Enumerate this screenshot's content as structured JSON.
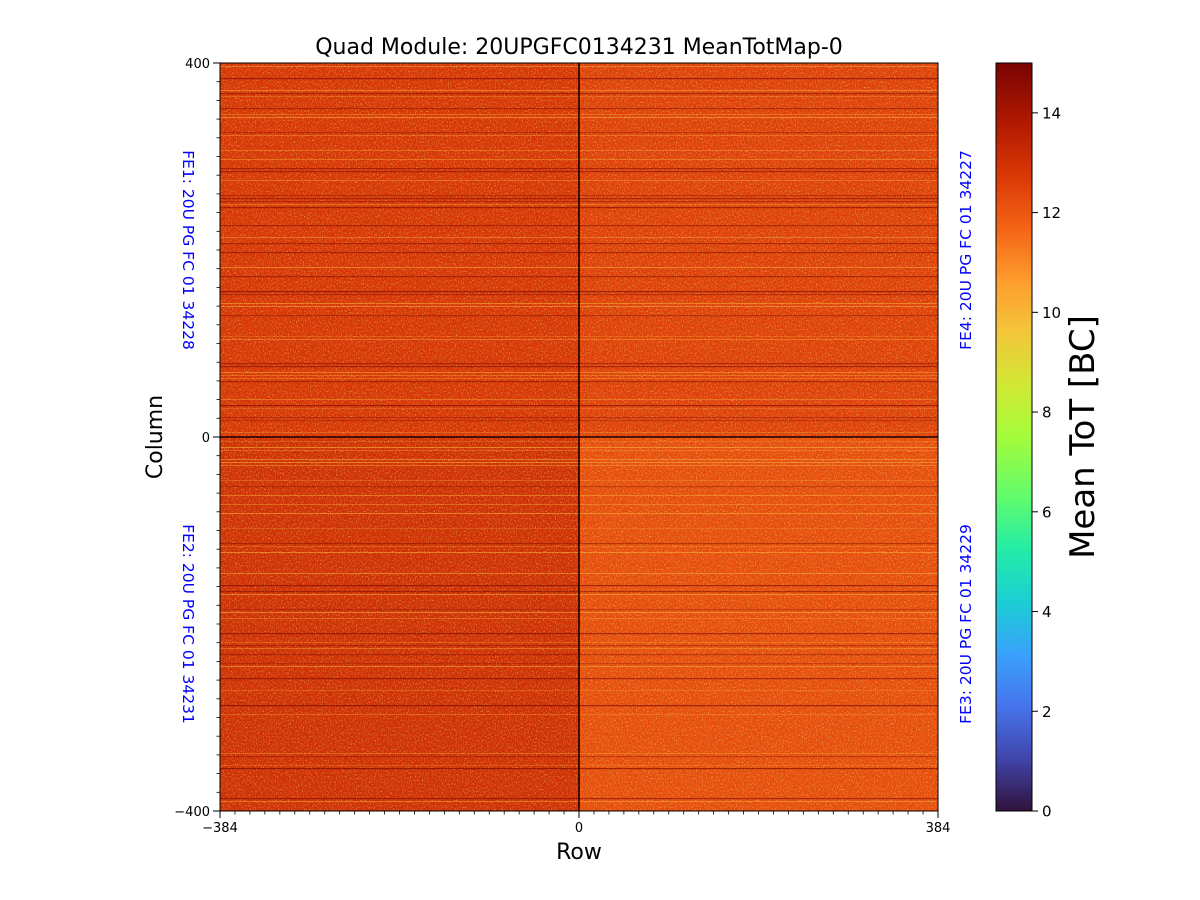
{
  "chart_data": {
    "type": "heatmap",
    "title": "Quad Module: 20UPGFC0134231 MeanTotMap-0",
    "xlabel": "Row",
    "ylabel": "Column",
    "xlim": [
      -384,
      384
    ],
    "ylim": [
      -400,
      400
    ],
    "x_ticks": [
      -384,
      0,
      384
    ],
    "y_ticks": [
      -400,
      0,
      400
    ],
    "x_tick_labels": [
      "−384",
      "0",
      "384"
    ],
    "y_tick_labels": [
      "−400",
      "0",
      "400"
    ],
    "colorbar": {
      "label": "Mean ToT [BC]",
      "range": [
        0,
        15
      ],
      "ticks": [
        0,
        2,
        4,
        6,
        8,
        10,
        12,
        14
      ],
      "colormap": "turbo"
    },
    "quadrant_labels": [
      {
        "text": "FE1: 20U PG FC 01 34228",
        "position": "top-left"
      },
      {
        "text": "FE2: 20U PG FC 01 34231",
        "position": "bottom-left"
      },
      {
        "text": "FE4: 20U PG FC 01 34227",
        "position": "top-right"
      },
      {
        "text": "FE3: 20U PG FC 01 34229",
        "position": "bottom-right"
      }
    ],
    "quadrant_mean_tot": {
      "FE1": 12.8,
      "FE2": 13.0,
      "FE3": 12.2,
      "FE4": 12.5
    },
    "grid": false
  }
}
